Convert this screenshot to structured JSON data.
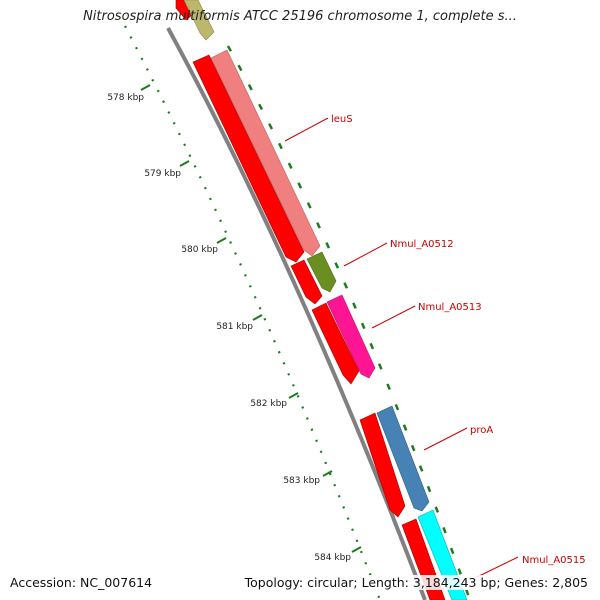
{
  "title": "Nitrosospira multiformis ATCC 25196 chromosome 1, complete s...",
  "footer": {
    "accession": "Accession: NC_007614",
    "topology": "Topology: circular; Length: 3,184,243 bp; Genes: 2,805"
  },
  "colors": {
    "backbone": "#808080",
    "cds": "#ff0000",
    "tick_major": "#1e7a1e",
    "tick_minor": "#1e7a1e",
    "label": "#cc0000"
  },
  "ruler": [
    "578 kbp",
    "579 kbp",
    "580 kbp",
    "581 kbp",
    "582 kbp",
    "583 kbp",
    "584 kbp"
  ],
  "genes": [
    {
      "label": "leuS",
      "color": "#f08080"
    },
    {
      "label": "Nmul_A0512",
      "color": "#6b8e23"
    },
    {
      "label": "Nmul_A0513",
      "color": "#ff1493"
    },
    {
      "label": "proA",
      "color": "#4682b4"
    },
    {
      "label": "Nmul_A0515",
      "color": "#00ffff"
    }
  ],
  "unlabeled_genes": [
    {
      "name": "gene-top-olive",
      "color": "#bdb76b"
    }
  ]
}
